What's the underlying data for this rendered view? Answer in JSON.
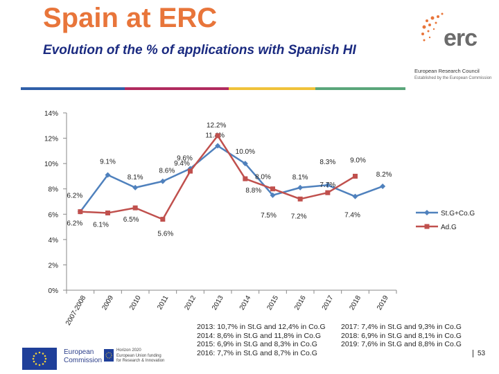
{
  "header": {
    "title": "Spain at ERC",
    "subtitle": "Evolution of the % of applications with Spanish HI"
  },
  "logo": {
    "mark": "erc",
    "name": "European Research Council",
    "tagline": "Established by the European Commission"
  },
  "colors": {
    "title": "#e8753a",
    "subtitle": "#1a2a80",
    "bar_1": "#2f5fa8",
    "bar_2": "#b02a5e",
    "bar_3": "#f0c23a",
    "bar_4": "#5aa67a",
    "series_stg_cog": "#4f81bd",
    "series_adg": "#c0504d"
  },
  "chart_data": {
    "type": "line",
    "categories": [
      "2007-2008",
      "2009",
      "2010",
      "2011",
      "2012",
      "2013",
      "2014",
      "2015",
      "2016",
      "2017",
      "2018",
      "2019"
    ],
    "series": [
      {
        "name": "St.G+Co.G",
        "values": [
          6.2,
          9.1,
          8.1,
          8.6,
          9.6,
          11.4,
          10.0,
          7.5,
          8.1,
          8.3,
          7.4,
          8.2
        ],
        "labels": [
          "6.2%",
          "9.1%",
          "8.1%",
          "8.6%",
          "9.6%",
          "11.4%",
          "10.0%",
          "7.5%",
          "8.1%",
          "8.3%",
          "7.4%",
          "8.2%"
        ]
      },
      {
        "name": "Ad.G",
        "values": [
          6.2,
          6.1,
          6.5,
          5.6,
          9.4,
          12.2,
          8.8,
          8.0,
          7.2,
          7.7,
          9.0,
          null
        ],
        "labels": [
          "6.2%",
          "6.1%",
          "6.5%",
          "5.6%",
          "9.4%",
          "12.2%",
          "8.8%",
          "8.0%",
          "7.2%",
          "7.7%",
          "9.0%",
          null
        ]
      }
    ],
    "y_ticks": [
      "0%",
      "2%",
      "4%",
      "6%",
      "8%",
      "10%",
      "12%",
      "14%"
    ],
    "ylim": [
      0,
      14
    ],
    "legend_position": "right",
    "xlabel": "",
    "ylabel": ""
  },
  "notes": {
    "left": [
      "2013: 10,7% in St.G and 12,4% in Co.G",
      "2014: 8,6% in St.G and 11,8% in Co.G",
      "2015: 6,9% in St.G and 8,3% in Co.G",
      "2016: 7,7% in St.G and 8,7% in Co.G"
    ],
    "right": [
      "2017: 7,4% in St.G and 9,3% in Co.G",
      "2018: 6,9% in St.G and 8,1% in Co.G",
      "2019: 7,6% in St.G and 8,8% in Co.G"
    ]
  },
  "footer": {
    "ec_line1": "European",
    "ec_line2": "Commission",
    "h2020_line1": "Horizon 2020",
    "h2020_line2": "European Union funding",
    "h2020_line3": "for Research & Innovation",
    "page_number": "53"
  }
}
